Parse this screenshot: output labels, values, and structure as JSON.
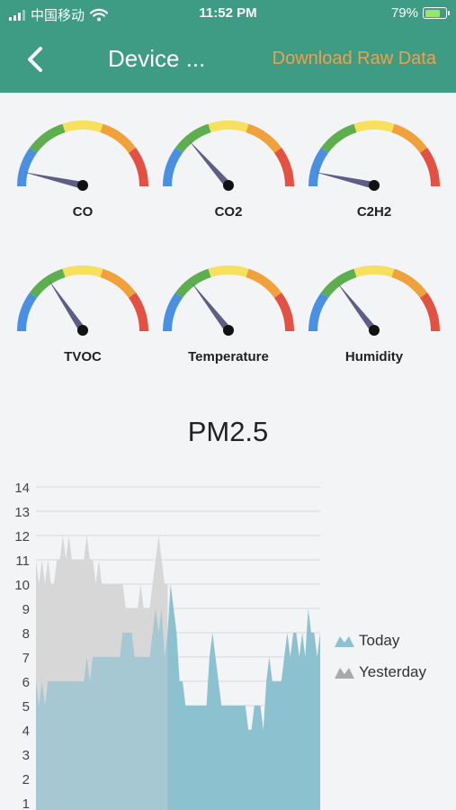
{
  "status_bar": {
    "carrier": "中国移动",
    "time": "11:52 PM",
    "battery": "79%",
    "battery_level": 0.79
  },
  "nav": {
    "title": "Device ...",
    "action": "Download Raw Data",
    "back_icon": "chevron-left-icon"
  },
  "colors": {
    "header": "#3e9c84",
    "action": "#f0a04b",
    "gauge_blue": "#4a90e2",
    "gauge_green": "#5cae4f",
    "gauge_yellow": "#f6e05e",
    "gauge_orange": "#f0a13c",
    "gauge_red": "#e25141",
    "needle": "#5d5d86",
    "today": "#8cc1d0",
    "yesterday": "#d8d8d8"
  },
  "gauges": [
    {
      "label": "CO",
      "value": 0.07
    },
    {
      "label": "CO2",
      "value": 0.27
    },
    {
      "label": "C2H2",
      "value": 0.07
    },
    {
      "label": "TVOC",
      "value": 0.31
    },
    {
      "label": "Temperature",
      "value": 0.29
    },
    {
      "label": "Humidity",
      "value": 0.29
    }
  ],
  "chart_data": {
    "type": "area",
    "title": "PM2.5",
    "ylim": [
      1,
      14
    ],
    "yticks": [
      1,
      2,
      3,
      4,
      5,
      6,
      7,
      8,
      9,
      10,
      11,
      12,
      13,
      14
    ],
    "legend_position": "right",
    "series": [
      {
        "name": "Today",
        "values": [
          6,
          5,
          6,
          5,
          6,
          6,
          6,
          6,
          6,
          6,
          6,
          6,
          6,
          6,
          6,
          6,
          6,
          7,
          6,
          7,
          7,
          7,
          7,
          7,
          7,
          7,
          7,
          7,
          7,
          8,
          8,
          8,
          8,
          7,
          7,
          7,
          7,
          7,
          7,
          8,
          9,
          8,
          9,
          7,
          8,
          10,
          9,
          8,
          6,
          6,
          5,
          5,
          5,
          5,
          5,
          5,
          5,
          5,
          7,
          8,
          7,
          6,
          5,
          5,
          5,
          5,
          5,
          5,
          5,
          5,
          5,
          4,
          4,
          5,
          5,
          5,
          4,
          6,
          7,
          6,
          6,
          6,
          6,
          7,
          8,
          7,
          8,
          8,
          7,
          8,
          7,
          9,
          8,
          8,
          7,
          8
        ]
      },
      {
        "name": "Yesterday",
        "values": [
          11,
          10,
          11,
          10,
          11,
          10,
          10,
          11,
          11,
          12,
          11,
          12,
          11,
          11,
          11,
          11,
          11,
          12,
          11,
          11,
          10,
          11,
          10,
          10,
          10,
          10,
          10,
          10,
          10,
          10,
          9,
          9,
          9,
          9,
          9,
          10,
          9,
          9,
          9,
          10,
          11,
          12,
          11,
          10,
          10
        ]
      }
    ]
  }
}
